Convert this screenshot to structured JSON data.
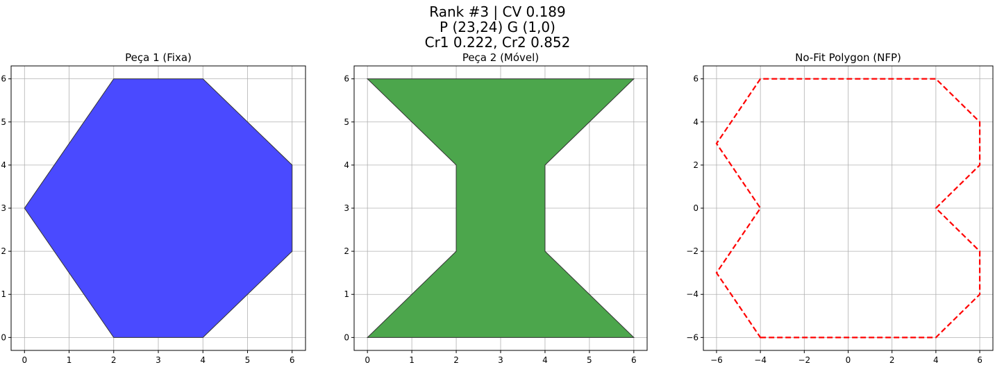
{
  "figure": {
    "suptitle_lines": [
      "Rank #3 | CV 0.189",
      "P (23,24) G (1,0)",
      "Cr1 0.222, Cr2 0.852"
    ]
  },
  "chart_data": [
    {
      "type": "polygon",
      "title": "Peça 1 (Fixa)",
      "xlabel": "",
      "ylabel": "",
      "xlim": [
        -0.3,
        6.3
      ],
      "ylim": [
        -0.3,
        6.3
      ],
      "xticks": [
        0,
        1,
        2,
        3,
        4,
        5,
        6
      ],
      "yticks": [
        0,
        1,
        2,
        3,
        4,
        5,
        6
      ],
      "xtick_labels": [
        "0",
        "1",
        "2",
        "3",
        "4",
        "5",
        "6"
      ],
      "ytick_labels": [
        "0",
        "1",
        "2",
        "3",
        "4",
        "5",
        "6"
      ],
      "grid": true,
      "fill_color": "#4a4aff",
      "edge_color": "#333333",
      "dashed": false,
      "points": [
        [
          2,
          0
        ],
        [
          4,
          0
        ],
        [
          6,
          2
        ],
        [
          6,
          4
        ],
        [
          4,
          6
        ],
        [
          2,
          6
        ],
        [
          0,
          3
        ]
      ]
    },
    {
      "type": "polygon",
      "title": "Peça 2 (Móvel)",
      "xlabel": "",
      "ylabel": "",
      "xlim": [
        -0.3,
        6.3
      ],
      "ylim": [
        -0.3,
        6.3
      ],
      "xticks": [
        0,
        1,
        2,
        3,
        4,
        5,
        6
      ],
      "yticks": [
        0,
        1,
        2,
        3,
        4,
        5,
        6
      ],
      "xtick_labels": [
        "0",
        "1",
        "2",
        "3",
        "4",
        "5",
        "6"
      ],
      "ytick_labels": [
        "0",
        "1",
        "2",
        "3",
        "4",
        "5",
        "6"
      ],
      "grid": true,
      "fill_color": "#4ca64c",
      "edge_color": "#333333",
      "dashed": false,
      "points": [
        [
          0,
          0
        ],
        [
          6,
          0
        ],
        [
          4,
          2
        ],
        [
          4,
          4
        ],
        [
          6,
          6
        ],
        [
          0,
          6
        ],
        [
          2,
          4
        ],
        [
          2,
          2
        ]
      ]
    },
    {
      "type": "polygon",
      "title": "No-Fit Polygon (NFP)",
      "xlabel": "",
      "ylabel": "",
      "xlim": [
        -6.6,
        6.6
      ],
      "ylim": [
        -6.6,
        6.6
      ],
      "xticks": [
        -6,
        -4,
        -2,
        0,
        2,
        4,
        6
      ],
      "yticks": [
        -6,
        -4,
        -2,
        0,
        2,
        4,
        6
      ],
      "xtick_labels": [
        "−6",
        "−4",
        "−2",
        "0",
        "2",
        "4",
        "6"
      ],
      "ytick_labels": [
        "−6",
        "−4",
        "−2",
        "0",
        "2",
        "4",
        "6"
      ],
      "grid": true,
      "fill_color": "none",
      "edge_color": "#ff0000",
      "dashed": true,
      "points": [
        [
          -4,
          -6
        ],
        [
          4,
          -6
        ],
        [
          6,
          -4
        ],
        [
          6,
          -2
        ],
        [
          4,
          0
        ],
        [
          6,
          2
        ],
        [
          6,
          4
        ],
        [
          4,
          6
        ],
        [
          -4,
          6
        ],
        [
          -6,
          3
        ],
        [
          -4,
          0
        ],
        [
          -6,
          -3
        ]
      ]
    }
  ]
}
